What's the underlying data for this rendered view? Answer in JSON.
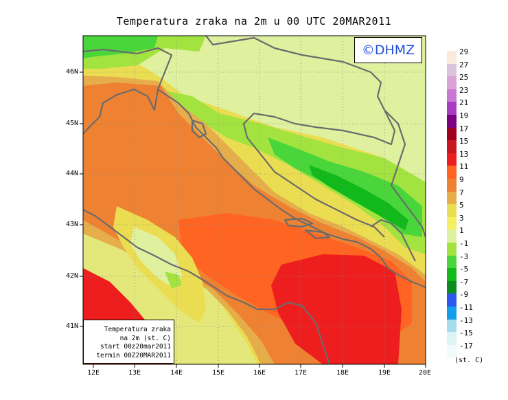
{
  "title": "Temperatura zraka na 2m u 00 UTC 20MAR2011",
  "logo": "©DHMZ",
  "infobox": {
    "line1": "Temperatura zraka",
    "line2": "na 2m (st. C)",
    "line3": "start 00z20mar2011",
    "line4": "termin 00Z20MAR2011"
  },
  "axes": {
    "lat_labels": [
      "46N",
      "45N",
      "44N",
      "43N",
      "42N",
      "41N"
    ],
    "lon_labels": [
      "12E",
      "13E",
      "14E",
      "15E",
      "16E",
      "17E",
      "18E",
      "19E",
      "20E"
    ]
  },
  "legend": {
    "units": "(st. C)",
    "labels": [
      "29",
      "27",
      "25",
      "23",
      "21",
      "19",
      "17",
      "15",
      "13",
      "11",
      "9",
      "7",
      "5",
      "3",
      "1",
      "-1",
      "-3",
      "-5",
      "-7",
      "-9",
      "-11",
      "-13",
      "-15",
      "-17"
    ],
    "colors": [
      "#fbeadb",
      "#dcc3dc",
      "#d9a3d9",
      "#c778d2",
      "#a93bc1",
      "#7a0080",
      "#a0001e",
      "#c8141e",
      "#ee1e1e",
      "#ff6422",
      "#ee8232",
      "#e6ad4b",
      "#eadd51",
      "#f5f063",
      "#dff09f",
      "#a2e340",
      "#49d63a",
      "#12b91b",
      "#0a8c1e",
      "#2d58ef",
      "#119cec",
      "#a7dcec",
      "#ddf3f4",
      "#f3fafb"
    ]
  }
}
